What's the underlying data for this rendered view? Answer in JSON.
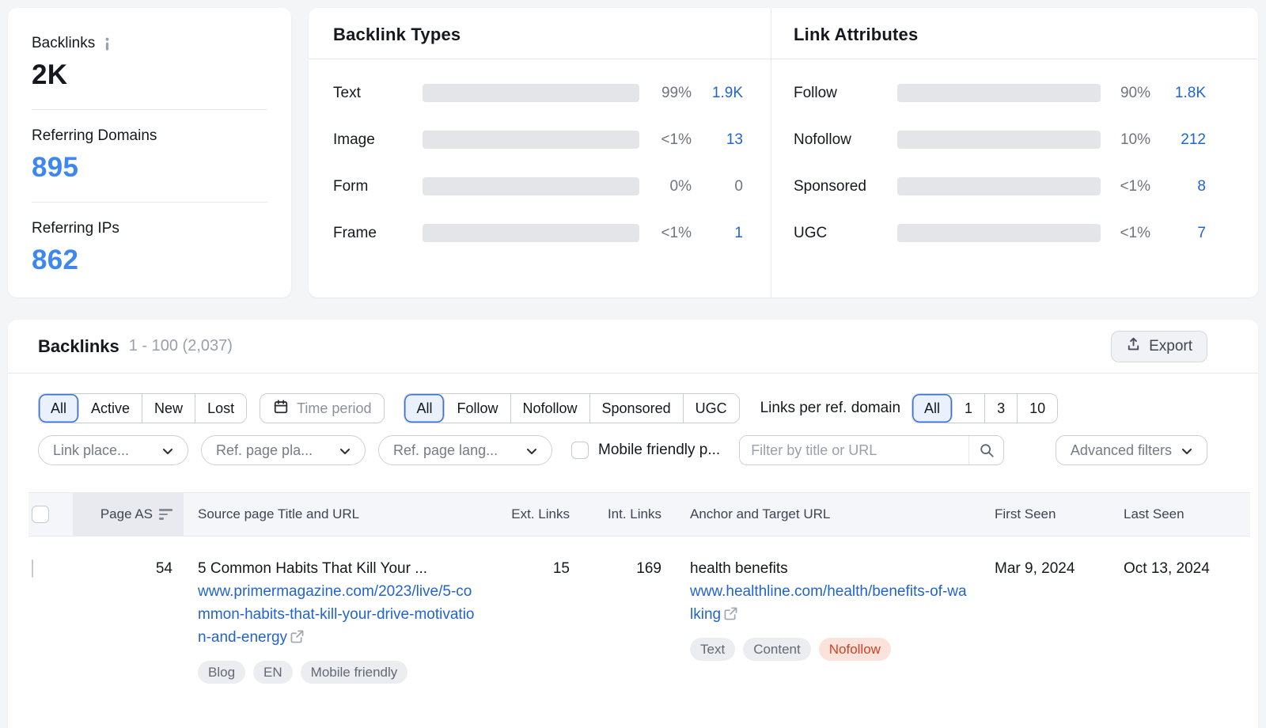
{
  "colors": {
    "link_blue": "#2264cf",
    "metric_blue": "#3e86f0",
    "bar_blue": "#55a5f3",
    "bar_green": "#4dba7f",
    "nofollow_red": "#cf4226",
    "selected_segment_border": "#3a6fd8"
  },
  "icons": {
    "info": "info-icon",
    "calendar": "calendar-icon",
    "search": "search-icon",
    "chevron": "chevron-down-icon",
    "upload": "upload-icon",
    "external_link": "external-link-icon",
    "sort": "sort-descending-icon"
  },
  "summary": {
    "backlinks_label": "Backlinks",
    "backlinks_value": "2K",
    "referring_domains_label": "Referring Domains",
    "referring_domains_value": "895",
    "referring_ips_label": "Referring IPs",
    "referring_ips_value": "862"
  },
  "chart_data": [
    {
      "type": "bar",
      "title": "Backlink Types",
      "categories": [
        "Text",
        "Image",
        "Form",
        "Frame"
      ],
      "values": [
        1900,
        13,
        0,
        1
      ],
      "pct": [
        99,
        0.7,
        0,
        0.7
      ],
      "pct_labels": [
        "99%",
        "<1%",
        "0%",
        "<1%"
      ],
      "value_labels": [
        "1.9K",
        "13",
        "0",
        "1"
      ],
      "bar_colors": [
        "#55a5f3",
        "#55a5f3",
        "#55a5f3",
        "#55a5f3"
      ],
      "xlim": [
        0,
        100
      ],
      "legend": "none"
    },
    {
      "type": "bar",
      "title": "Link Attributes",
      "categories": [
        "Follow",
        "Nofollow",
        "Sponsored",
        "UGC"
      ],
      "values": [
        1800,
        212,
        8,
        7
      ],
      "pct": [
        90,
        10,
        0.6,
        0.6
      ],
      "pct_labels": [
        "90%",
        "10%",
        "<1%",
        "<1%"
      ],
      "value_labels": [
        "1.8K",
        "212",
        "8",
        "7"
      ],
      "bar_colors": [
        "#4dba7f",
        "#55a5f3",
        "#55a5f3",
        "#55a5f3"
      ],
      "xlim": [
        0,
        100
      ],
      "legend": "none"
    }
  ],
  "table_section": {
    "title": "Backlinks",
    "range": "1 - 100 (2,037)",
    "export_label": "Export",
    "filters": {
      "status_options": [
        "All",
        "Active",
        "New",
        "Lost"
      ],
      "status_selected": "All",
      "time_period_label": "Time period",
      "attr_options": [
        "All",
        "Follow",
        "Nofollow",
        "Sponsored",
        "UGC"
      ],
      "attr_selected": "All",
      "links_per_domain_label": "Links per ref. domain",
      "links_per_domain_options": [
        "All",
        "1",
        "3",
        "10"
      ],
      "links_per_domain_selected": "All",
      "dropdown_link_placement": "Link place...",
      "dropdown_ref_page_platform": "Ref. page pla...",
      "dropdown_ref_page_language": "Ref. page lang...",
      "mobile_friendly_label": "Mobile friendly p...",
      "search_placeholder": "Filter by title or URL",
      "advanced_filters_label": "Advanced filters"
    },
    "columns": {
      "page_as": "Page AS",
      "source": "Source page Title and URL",
      "ext_links": "Ext. Links",
      "int_links": "Int. Links",
      "anchor": "Anchor and Target URL",
      "first_seen": "First Seen",
      "last_seen": "Last Seen"
    },
    "rows": [
      {
        "page_as": "54",
        "title": "5 Common Habits That Kill Your ...",
        "url": "www.primermagazine.com/2023/live/5-common-habits-that-kill-your-drive-motivation-and-energy",
        "source_badges": [
          "Blog",
          "EN",
          "Mobile friendly"
        ],
        "ext_links": "15",
        "int_links": "169",
        "anchor": "health benefits",
        "target_url": "www.healthline.com/health/benefits-of-walking",
        "link_badges": [
          "Text",
          "Content",
          "Nofollow"
        ],
        "first_seen": "Mar 9, 2024",
        "last_seen": "Oct 13, 2024"
      }
    ]
  }
}
